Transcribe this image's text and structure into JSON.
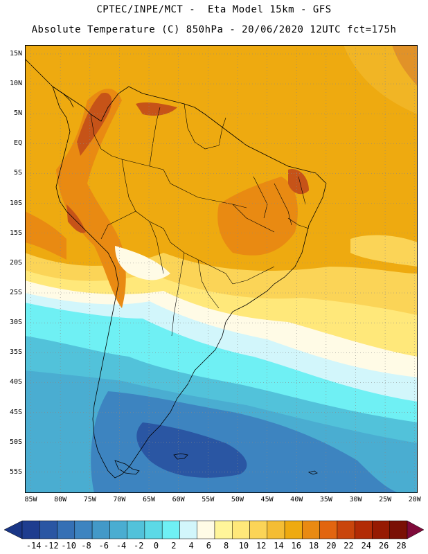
{
  "header": {
    "line1": "CPTEC/INPE/MCT -  Eta Model 15km - GFS",
    "line2": "Absolute Temperature (C) 850hPa - 20/06/2020 12UTC fct=175h"
  },
  "map": {
    "lat_labels": [
      "15N",
      "10N",
      "5N",
      "EQ",
      "5S",
      "10S",
      "15S",
      "20S",
      "25S",
      "30S",
      "35S",
      "40S",
      "45S",
      "50S",
      "55S"
    ],
    "lon_labels": [
      "85W",
      "80W",
      "75W",
      "70W",
      "65W",
      "60W",
      "55W",
      "50W",
      "45W",
      "40W",
      "35W",
      "30W",
      "25W",
      "20W"
    ],
    "lat_values": [
      15,
      10,
      5,
      0,
      -5,
      -10,
      -15,
      -20,
      -25,
      -30,
      -35,
      -40,
      -45,
      -50,
      -55
    ],
    "lon_values": [
      -85,
      -80,
      -75,
      -70,
      -65,
      -60,
      -55,
      -50,
      -45,
      -40,
      -35,
      -30,
      -25,
      -20
    ],
    "extent": {
      "lon_min": -86,
      "lon_max": -19.5,
      "lat_min": -58.5,
      "lat_max": 16.5
    }
  },
  "colorbar": {
    "labels": [
      "-14",
      "-12",
      "-10",
      "-8",
      "-6",
      "-4",
      "-2",
      "0",
      "2",
      "4",
      "6",
      "8",
      "10",
      "12",
      "14",
      "16",
      "18",
      "20",
      "22",
      "24",
      "26",
      "28"
    ],
    "colors": [
      "#1e3d8f",
      "#2a56a3",
      "#3570b5",
      "#3d84c0",
      "#4399c8",
      "#4aadd1",
      "#52c2da",
      "#5cd9e6",
      "#6ff0f4",
      "#d2f6fb",
      "#fffbe6",
      "#fff59a",
      "#ffe87a",
      "#fbd457",
      "#f4bd34",
      "#eeaa10",
      "#e98a12",
      "#e2650f",
      "#c9450b",
      "#b22b05",
      "#961a02",
      "#7a1005"
    ],
    "low_arrow_color": "#1a3686",
    "high_arrow_color": "#7f0a3a"
  },
  "colors": {
    "warm_hot": "#c65318",
    "warm_mid": "#e98a12",
    "warm": "#eeaa10",
    "warm_light": "#f4bd34",
    "yellow": "#ffe87a",
    "pale": "#fffbe6",
    "cyan": "#6ff0f4",
    "cyan_mid": "#52c2da",
    "blue_light": "#4aadd1",
    "blue": "#3d84c0",
    "blue_dark": "#2a56a3",
    "coast": "#000000"
  }
}
